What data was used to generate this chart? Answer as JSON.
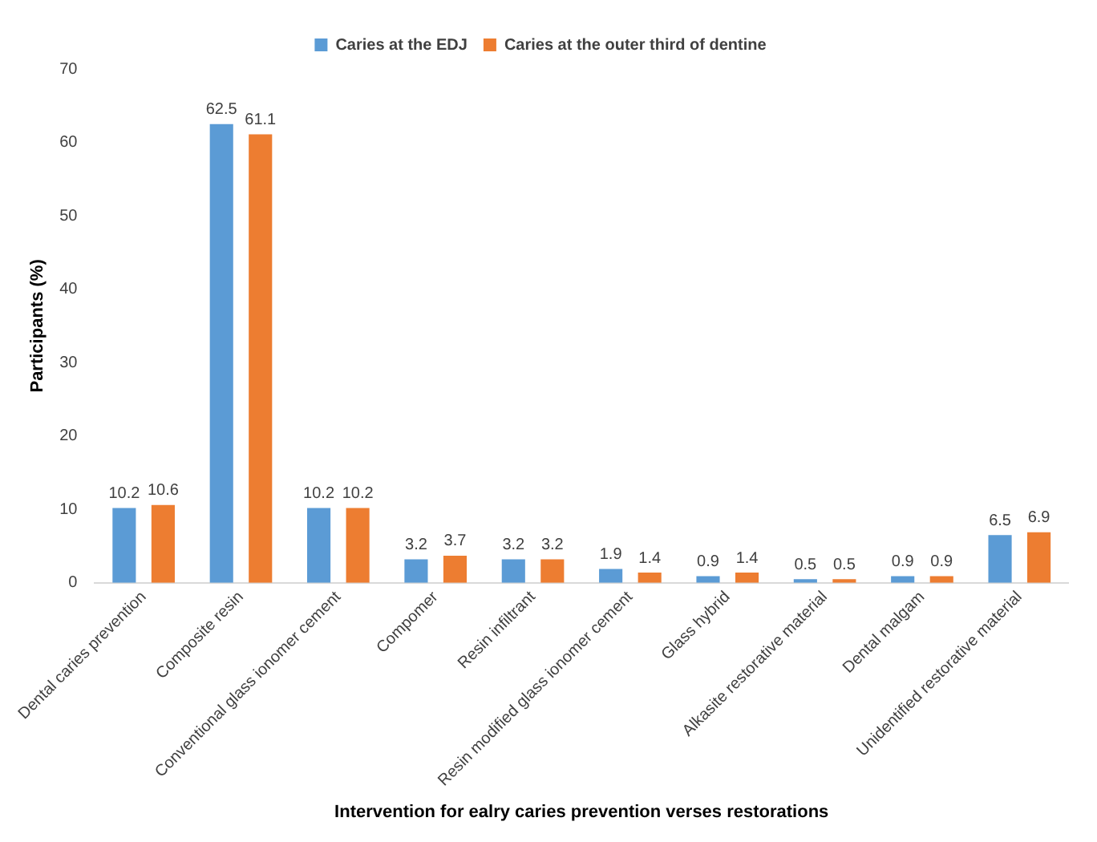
{
  "chart_data": {
    "type": "bar",
    "xlabel": "Intervention for ealry caries prevention verses restorations",
    "ylabel": "Participants (%)",
    "categories": [
      "Dental caries prevention",
      "Composite resin",
      "Conventional glass ionomer cement",
      "Compomer",
      "Resin infiltrant",
      "Resin modified glass ionomer cement",
      "Glass hybrid",
      "Alkasite restorative material",
      "Dental malgam",
      "Unidentified restorative material"
    ],
    "series": [
      {
        "name": "Caries at the EDJ",
        "color": "#5b9bd5",
        "values": [
          10.2,
          62.5,
          10.2,
          3.2,
          3.2,
          1.9,
          0.9,
          0.5,
          0.9,
          6.5
        ]
      },
      {
        "name": "Caries at the outer third of dentine",
        "color": "#ed7d31",
        "values": [
          10.6,
          61.1,
          10.2,
          3.7,
          3.2,
          1.4,
          1.4,
          0.5,
          0.9,
          6.9
        ]
      }
    ],
    "ylim": [
      0,
      70
    ],
    "yticks": [
      0,
      10,
      20,
      30,
      40,
      50,
      60,
      70
    ],
    "grid": false,
    "legend": "top",
    "data_labels": true
  }
}
